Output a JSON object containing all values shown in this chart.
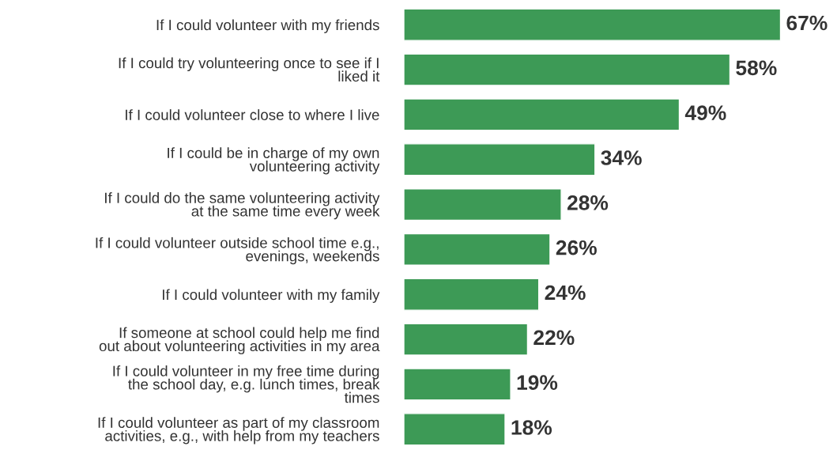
{
  "chart_data": {
    "type": "bar",
    "orientation": "horizontal",
    "categories": [
      "If I could volunteer with my friends",
      "If I could try volunteering once to see if I\nliked it",
      "If I could volunteer close to where I live",
      "If I could be in charge of my own\nvolunteering activity",
      "If I could do the same volunteering activity\nat the same time every week",
      "If I could volunteer outside school time e.g.,\nevenings, weekends",
      "If I could volunteer with my family",
      "If someone at school could help me find\nout about volunteering activities in my area",
      "If I could volunteer in my free time during\nthe school day, e.g. lunch times, break\ntimes",
      "If I could volunteer as part of my classroom\nactivities, e.g., with help from my teachers"
    ],
    "values": [
      67,
      58,
      49,
      34,
      28,
      26,
      24,
      22,
      19,
      18
    ],
    "value_labels": [
      "67%",
      "58%",
      "49%",
      "34%",
      "28%",
      "26%",
      "24%",
      "22%",
      "19%",
      "18%"
    ],
    "color": "#3d9a56",
    "grid": false,
    "legend": false
  }
}
